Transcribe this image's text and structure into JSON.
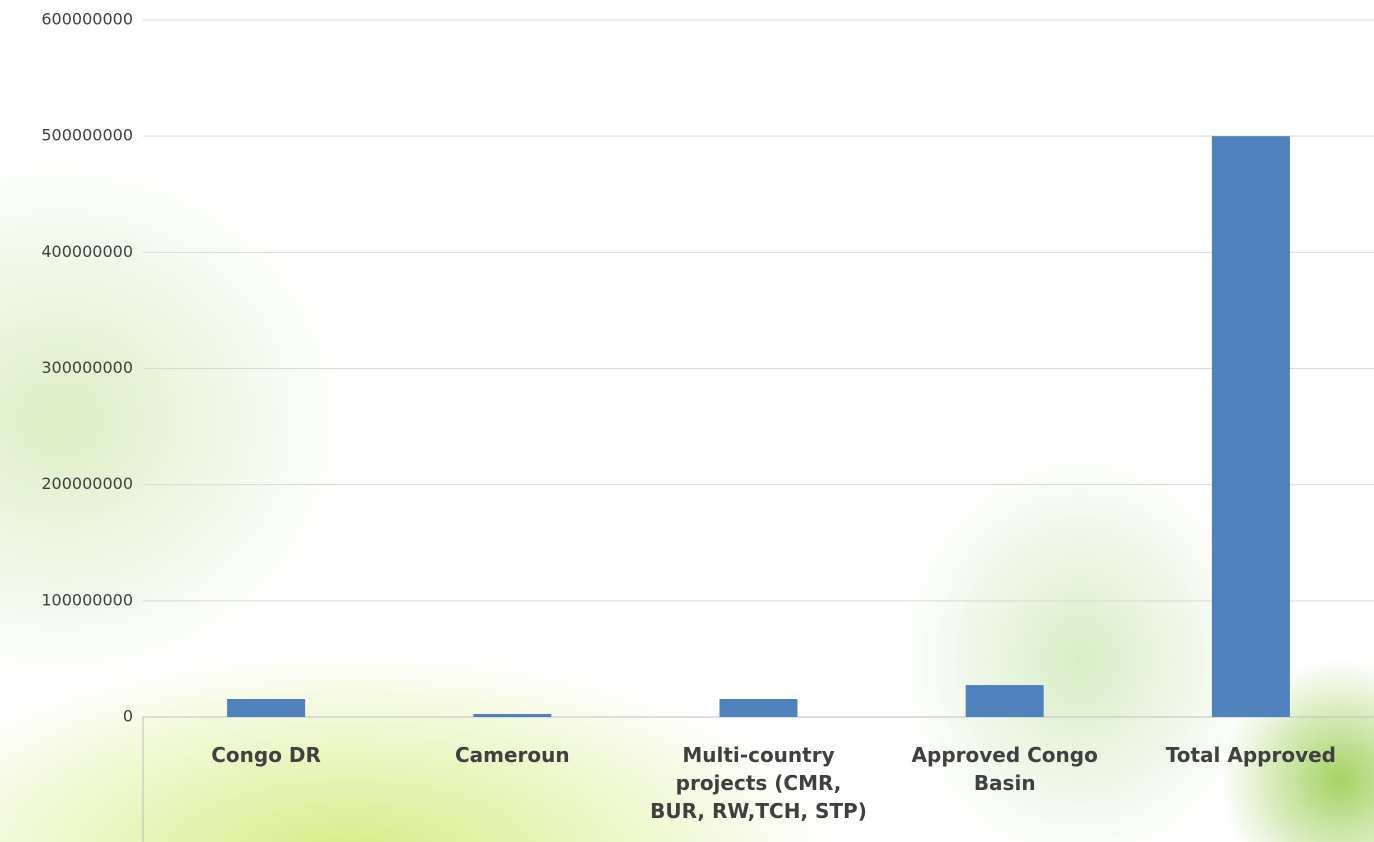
{
  "chart_data": {
    "type": "bar",
    "categories": [
      "Congo DR",
      "Cameroun",
      "Multi-country projects (CMR, BUR, RW,TCH, STP)",
      "Approved Congo Basin",
      "Total Approved"
    ],
    "values": [
      15500000,
      2600000,
      15500000,
      27500000,
      500000000
    ],
    "color": "#4f81bd",
    "ylim": [
      0,
      600000000
    ],
    "yticks": [
      0,
      100000000,
      200000000,
      300000000,
      400000000,
      500000000,
      600000000
    ],
    "grid": true
  }
}
